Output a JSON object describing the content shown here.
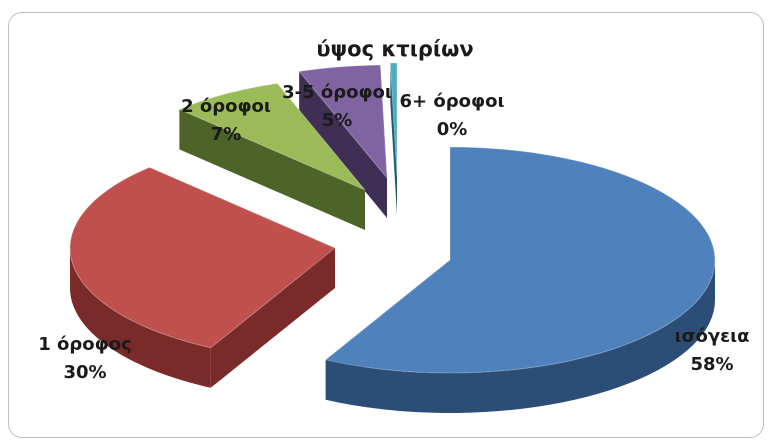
{
  "chart_data": {
    "type": "pie",
    "title": "ύψος κτιρίων",
    "style": "3d-exploded",
    "slices": [
      {
        "label": "ισόγεια",
        "percent_label": "58%",
        "value": 58,
        "color": "#4f81bd",
        "dark": "#2c4d76"
      },
      {
        "label": "1 όροφος",
        "percent_label": "30%",
        "value": 30,
        "color": "#c0504d",
        "dark": "#7a2a28"
      },
      {
        "label": "2 όροφοι",
        "percent_label": "7%",
        "value": 7,
        "color": "#9bbb59",
        "dark": "#4e6327"
      },
      {
        "label": "3-5 όροφοι",
        "percent_label": "5%",
        "value": 5,
        "color": "#8064a2",
        "dark": "#3f2f55"
      },
      {
        "label": "6+ όροφοι",
        "percent_label": "0%",
        "value": 0.4,
        "color": "#4bacc6",
        "dark": "#205c70"
      }
    ]
  }
}
